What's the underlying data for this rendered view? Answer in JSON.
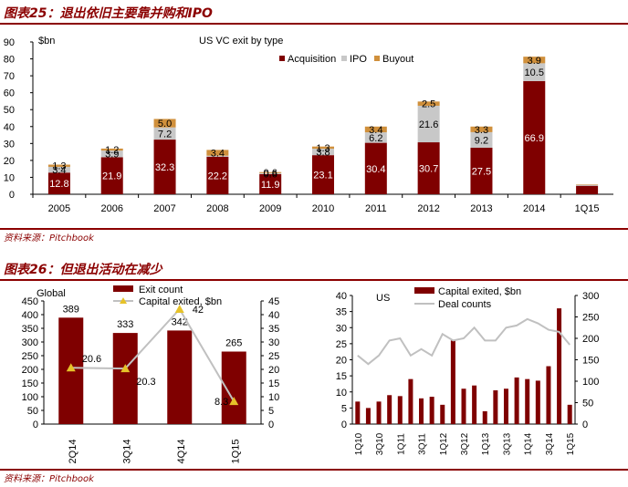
{
  "figures": [
    {
      "title": "图表25：退出依旧主要靠并购和IPO",
      "source": "资料来源：Pitchbook"
    },
    {
      "title": "图表26：但退出活动在减少",
      "source": "资料来源：Pitchbook"
    }
  ],
  "chart_data": [
    {
      "type": "bar",
      "stacked": true,
      "title": "US VC exit by type",
      "ylabel": "$bn",
      "ylim": [
        0,
        90
      ],
      "yticks": [
        0,
        10,
        20,
        30,
        40,
        50,
        60,
        70,
        80,
        90
      ],
      "categories": [
        "2005",
        "2006",
        "2007",
        "2008",
        "2009",
        "2010",
        "2011",
        "2012",
        "2013",
        "2014",
        "1Q15"
      ],
      "series": [
        {
          "name": "Acquisition",
          "color": "#7f0000",
          "values": [
            12.8,
            21.9,
            32.3,
            22.2,
            11.9,
            23.1,
            30.4,
            30.7,
            27.5,
            66.9,
            5.0
          ],
          "labels": [
            "12.8",
            "21.9",
            "32.3",
            "22.2",
            "11.9",
            "23.1",
            "30.4",
            "30.7",
            "27.5",
            "66.9",
            ""
          ]
        },
        {
          "name": "IPO",
          "color": "#c8c8c8",
          "values": [
            3.4,
            3.9,
            7.2,
            0.6,
            0.6,
            3.8,
            6.2,
            21.6,
            9.2,
            10.5,
            0.6
          ],
          "labels": [
            "3.4",
            "3.9",
            "7.2",
            "",
            "0.6",
            "3.8",
            "6.2",
            "21.6",
            "9.2",
            "10.5",
            ""
          ]
        },
        {
          "name": "Buyout",
          "color": "#d0903c",
          "values": [
            1.3,
            1.2,
            5.0,
            3.4,
            0.6,
            1.3,
            3.4,
            2.5,
            3.3,
            3.9,
            0.2
          ],
          "labels": [
            "1.3",
            "1.2",
            "5.0",
            "3.4",
            "0.6",
            "1.3",
            "3.4",
            "2.5",
            "3.3",
            "3.9",
            ""
          ]
        }
      ],
      "legend": "top-center",
      "grid": false
    },
    {
      "type": "bar",
      "title": "Global",
      "categories": [
        "2Q14",
        "3Q14",
        "4Q14",
        "1Q15"
      ],
      "ylim_left": [
        0,
        450
      ],
      "yticks_left": [
        0,
        50,
        100,
        150,
        200,
        250,
        300,
        350,
        400,
        450
      ],
      "ylim_right": [
        0,
        45
      ],
      "yticks_right": [
        0,
        5,
        10,
        15,
        20,
        25,
        30,
        35,
        40,
        45
      ],
      "series": [
        {
          "name": "Exit count",
          "type": "bar",
          "axis": "left",
          "color": "#7f0000",
          "values": [
            389,
            333,
            342,
            265
          ],
          "labels": [
            "389",
            "333",
            "342",
            "265"
          ]
        },
        {
          "name": "Capital exited, $bn",
          "type": "line",
          "axis": "right",
          "color": "#c0c0c0",
          "marker_color": "#e6c229",
          "values": [
            20.6,
            20.3,
            42,
            8.3
          ],
          "labels": [
            "20.6",
            "20.3",
            "42",
            "8.3"
          ]
        }
      ],
      "legend": "top-center",
      "grid": false
    },
    {
      "type": "bar",
      "title": "US",
      "categories": [
        "1Q10",
        "2Q10",
        "3Q10",
        "4Q10",
        "1Q11",
        "2Q11",
        "3Q11",
        "4Q11",
        "1Q12",
        "2Q12",
        "3Q12",
        "4Q12",
        "1Q13",
        "2Q13",
        "3Q13",
        "4Q13",
        "1Q14",
        "2Q14",
        "3Q14",
        "4Q14",
        "1Q15"
      ],
      "xtick_labels": [
        "1Q10",
        "3Q10",
        "1Q11",
        "3Q11",
        "1Q12",
        "3Q12",
        "1Q13",
        "3Q13",
        "1Q14",
        "3Q14",
        "1Q15"
      ],
      "ylim_left": [
        0,
        40
      ],
      "yticks_left": [
        0,
        5,
        10,
        15,
        20,
        25,
        30,
        35,
        40
      ],
      "ylim_right": [
        0,
        300
      ],
      "yticks_right": [
        0,
        50,
        100,
        150,
        200,
        250,
        300
      ],
      "series": [
        {
          "name": "Capital exited, $bn",
          "type": "bar",
          "axis": "left",
          "color": "#7f0000",
          "values": [
            7,
            5,
            7,
            9,
            8.7,
            14,
            8,
            8.5,
            6,
            26,
            11,
            12,
            4,
            10.5,
            11,
            14.5,
            14,
            13.5,
            18,
            36,
            6
          ]
        },
        {
          "name": "Deal counts",
          "type": "line",
          "axis": "right",
          "color": "#c0c0c0",
          "values": [
            160,
            140,
            160,
            195,
            200,
            160,
            175,
            160,
            210,
            195,
            200,
            225,
            195,
            195,
            225,
            230,
            245,
            235,
            220,
            215,
            185
          ]
        }
      ],
      "legend": "top-left",
      "grid": false
    }
  ]
}
